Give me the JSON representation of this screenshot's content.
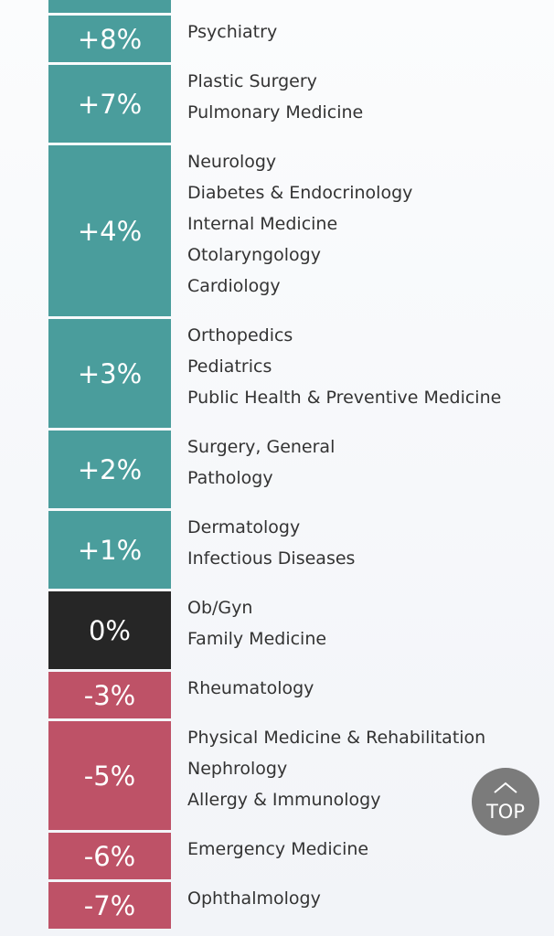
{
  "groups": [
    {
      "change": "+8%",
      "color": "#4a9d9c",
      "items": [
        "Psychiatry"
      ]
    },
    {
      "change": "+7%",
      "color": "#4a9d9c",
      "items": [
        "Plastic Surgery",
        "Pulmonary Medicine"
      ]
    },
    {
      "change": "+4%",
      "color": "#4a9d9c",
      "items": [
        "Neurology",
        "Diabetes & Endocrinology",
        "Internal Medicine",
        "Otolaryngology",
        "Cardiology"
      ]
    },
    {
      "change": "+3%",
      "color": "#4a9d9c",
      "items": [
        "Orthopedics",
        "Pediatrics",
        "Public Health & Preventive Medicine"
      ]
    },
    {
      "change": "+2%",
      "color": "#4a9d9c",
      "items": [
        "Surgery, General",
        "Pathology"
      ]
    },
    {
      "change": "+1%",
      "color": "#4a9d9c",
      "items": [
        "Dermatology",
        "Infectious Diseases"
      ]
    },
    {
      "change": "0%",
      "color": "#262626",
      "items": [
        "Ob/Gyn",
        "Family Medicine"
      ]
    },
    {
      "change": "-3%",
      "color": "#be5267",
      "items": [
        "Rheumatology"
      ]
    },
    {
      "change": "-5%",
      "color": "#be5267",
      "items": [
        "Physical Medicine & Rehabilitation",
        "Nephrology",
        "Allergy & Immunology"
      ]
    },
    {
      "change": "-6%",
      "color": "#be5267",
      "items": [
        "Emergency Medicine"
      ]
    },
    {
      "change": "-7%",
      "color": "#be5267",
      "items": [
        "Ophthalmology"
      ]
    }
  ],
  "top_button": {
    "label": "TOP"
  }
}
